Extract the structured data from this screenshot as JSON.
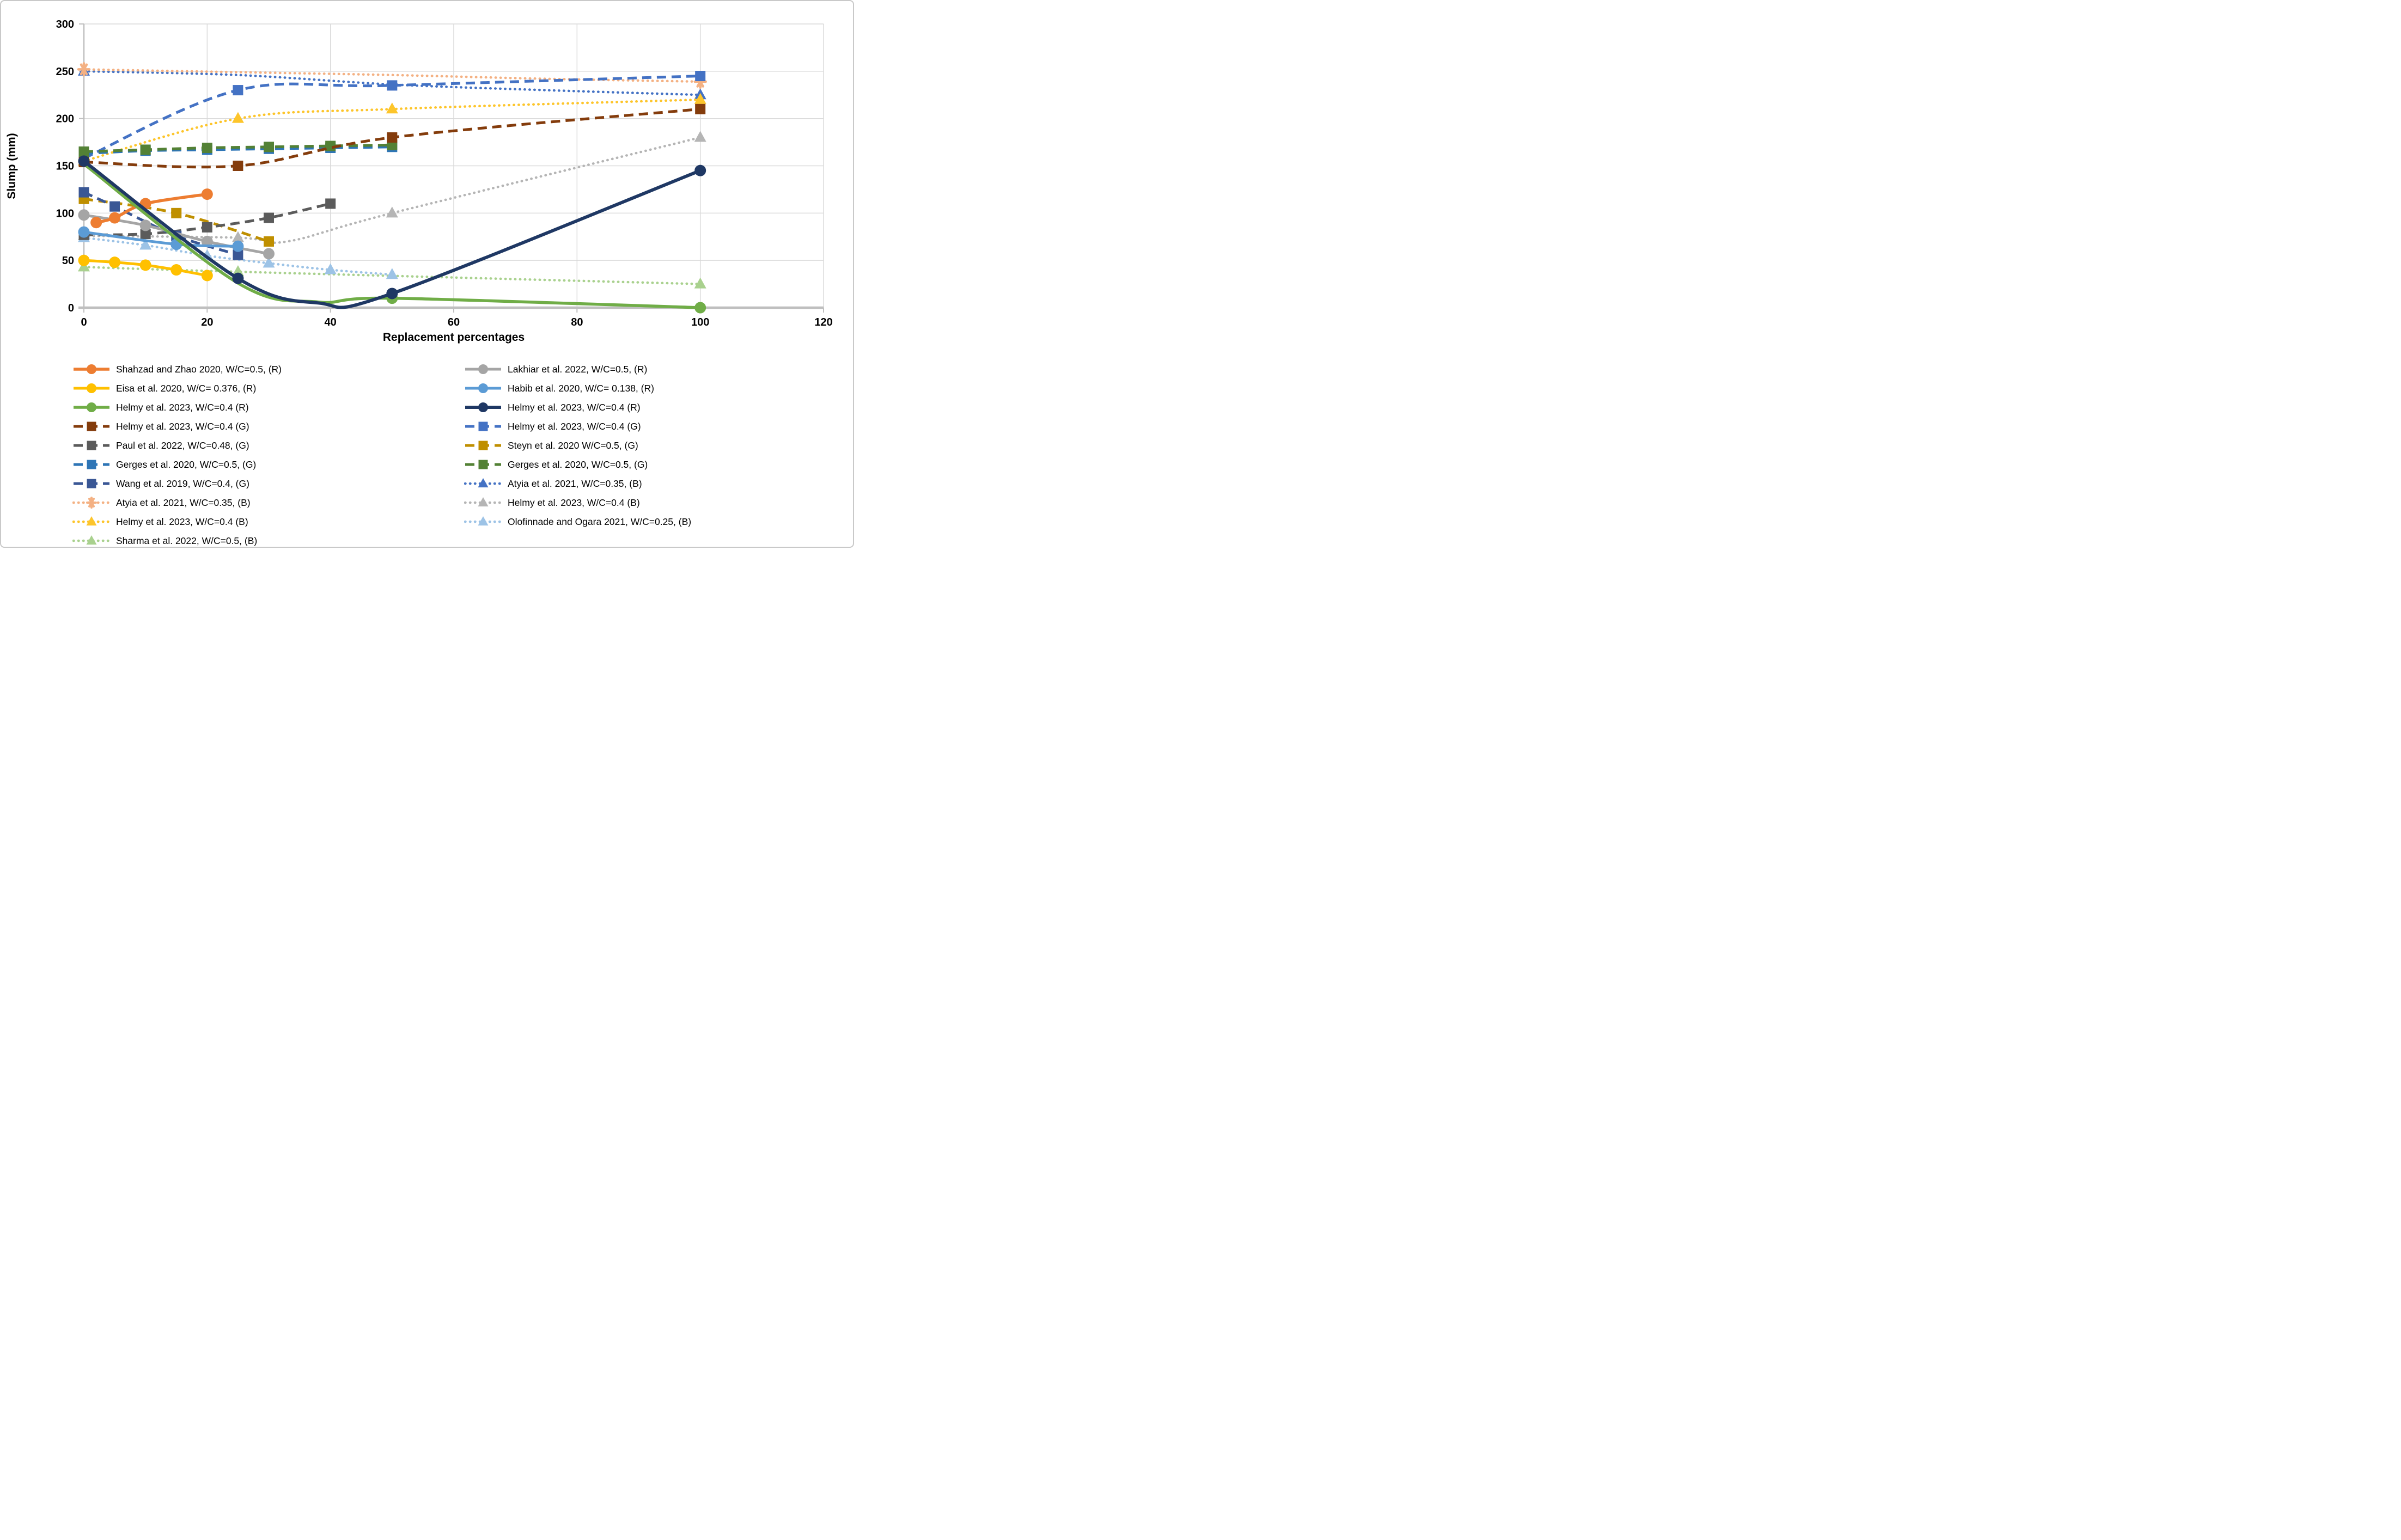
{
  "figure": {
    "background": "#FFFFFF",
    "border_color": "#C9C9C9"
  },
  "axes": {
    "x_title": "Replacement percentages",
    "y_title": "Slump  (mm)",
    "x_ticks": [
      0,
      20,
      40,
      60,
      80,
      100,
      120
    ],
    "y_ticks": [
      0,
      50,
      100,
      150,
      200,
      250,
      300
    ],
    "grid_color": "#D9D9D9",
    "axis_color": "#BFBFBF",
    "tick_label_color": "#000000"
  },
  "chart_data": {
    "type": "line",
    "title": "",
    "xlabel": "Replacement percentages",
    "ylabel": "Slump  (mm)",
    "xlim": [
      0,
      120
    ],
    "ylim": [
      0,
      300
    ],
    "grid": true,
    "legend_position": "bottom-two-columns",
    "series": [
      {
        "key": "atyia_blue",
        "name": "Atyia et al. 2021, W/C=0.35, (B)",
        "color": "#4472C4",
        "line": "dot",
        "marker": "triangle",
        "width": 4.5,
        "points": [
          [
            0,
            250
          ],
          [
            100,
            225
          ]
        ],
        "path": [
          [
            0,
            250
          ],
          [
            25,
            246
          ],
          [
            50,
            236
          ],
          [
            75,
            230
          ],
          [
            100,
            225
          ]
        ],
        "legend_col": 2,
        "legend_row": 7
      },
      {
        "key": "atyia_orange",
        "name": "Atyia et al. 2021, W/C=0.35, (B)",
        "color": "#F4B183",
        "line": "dot",
        "marker": "star",
        "width": 4.5,
        "points": [
          [
            0,
            252
          ],
          [
            100,
            239
          ]
        ],
        "path": [
          [
            0,
            252
          ],
          [
            25,
            249
          ],
          [
            50,
            246
          ],
          [
            75,
            242
          ],
          [
            100,
            239
          ]
        ],
        "legend_col": 1,
        "legend_row": 8
      },
      {
        "key": "helmy_g_blue",
        "name": "Helmy et al. 2023, W/C=0.4 (G)",
        "color": "#4472C4",
        "line": "dash",
        "marker": "square",
        "width": 5,
        "points": [
          [
            0,
            158
          ],
          [
            25,
            230
          ],
          [
            50,
            235
          ],
          [
            100,
            245
          ]
        ],
        "legend_col": 2,
        "legend_row": 4
      },
      {
        "key": "helmy_b_yellow",
        "name": "Helmy et al. 2023, W/C=0.4 (B)",
        "color": "#FDC52B",
        "line": "dot",
        "marker": "triangle",
        "width": 4.5,
        "points": [
          [
            0,
            155
          ],
          [
            25,
            200
          ],
          [
            50,
            210
          ],
          [
            100,
            220
          ]
        ],
        "legend_col": 1,
        "legend_row": 9
      },
      {
        "key": "helmy_b_gray",
        "name": "Helmy et al. 2023, W/C=0.4 (B)",
        "color": "#B5B5B5",
        "line": "dot",
        "marker": "triangle",
        "width": 4.5,
        "points": [
          [
            0,
            76
          ],
          [
            25,
            74
          ],
          [
            50,
            100
          ],
          [
            100,
            180
          ]
        ],
        "path": [
          [
            0,
            76
          ],
          [
            25,
            74
          ],
          [
            33,
            70
          ],
          [
            50,
            100
          ],
          [
            100,
            180
          ]
        ],
        "legend_col": 2,
        "legend_row": 8
      },
      {
        "key": "sharma",
        "name": "Sharma et al. 2022, W/C=0.5, (B)",
        "color": "#A9D18E",
        "line": "dot",
        "marker": "triangle",
        "width": 4.5,
        "points": [
          [
            0,
            43
          ],
          [
            25,
            38
          ],
          [
            100,
            25
          ]
        ],
        "legend_col": 1,
        "legend_row": 10
      },
      {
        "key": "olofinnade",
        "name": "Olofinnade and Ogara 2021, W/C=0.25, (B)",
        "color": "#9DC3E6",
        "line": "dot",
        "marker": "triangle",
        "width": 4.5,
        "points": [
          [
            0,
            74
          ],
          [
            10,
            66
          ],
          [
            20,
            55
          ],
          [
            30,
            47
          ],
          [
            40,
            40
          ],
          [
            50,
            35
          ]
        ],
        "legend_col": 2,
        "legend_row": 9
      },
      {
        "key": "steyn",
        "name": "Steyn et al. 2020 W/C=0.5, (G)",
        "color": "#BF8F00",
        "line": "dash",
        "marker": "square",
        "width": 5,
        "points": [
          [
            0,
            115
          ],
          [
            15,
            100
          ],
          [
            30,
            70
          ]
        ],
        "legend_col": 2,
        "legend_row": 5
      },
      {
        "key": "paul",
        "name": "Paul et al. 2022, W/C=0.48, (G)",
        "color": "#5B5B5B",
        "line": "dash",
        "marker": "square",
        "width": 5,
        "points": [
          [
            0,
            77
          ],
          [
            10,
            78
          ],
          [
            20,
            85
          ],
          [
            30,
            95
          ],
          [
            40,
            110
          ]
        ],
        "legend_col": 1,
        "legend_row": 5
      },
      {
        "key": "wang",
        "name": "Wang et al. 2019, W/C=0.4, (G)",
        "color": "#3A5795",
        "line": "dash",
        "marker": "square",
        "width": 5,
        "points": [
          [
            0,
            122
          ],
          [
            5,
            107
          ],
          [
            15,
            76
          ],
          [
            25,
            56
          ]
        ],
        "legend_col": 1,
        "legend_row": 7
      },
      {
        "key": "gerges_blue",
        "name": "Gerges et al. 2020, W/C=0.5, (G)",
        "color": "#2E75B6",
        "line": "dash",
        "marker": "square",
        "width": 5,
        "points": [
          [
            0,
            163
          ],
          [
            10,
            166
          ],
          [
            20,
            167
          ],
          [
            30,
            168
          ],
          [
            40,
            169
          ],
          [
            50,
            170
          ]
        ],
        "legend_col": 1,
        "legend_row": 6
      },
      {
        "key": "gerges_green",
        "name": "Gerges et al. 2020, W/C=0.5, (G)",
        "color": "#538135",
        "line": "dash",
        "marker": "square",
        "width": 5,
        "points": [
          [
            0,
            165
          ],
          [
            10,
            167
          ],
          [
            20,
            169
          ],
          [
            30,
            170
          ],
          [
            40,
            171
          ],
          [
            50,
            172
          ]
        ],
        "legend_col": 2,
        "legend_row": 6
      },
      {
        "key": "helmy_g_brown",
        "name": "Helmy et al. 2023, W/C=0.4 (G)",
        "color": "#843C0C",
        "line": "dash",
        "marker": "square",
        "width": 5,
        "points": [
          [
            0,
            154
          ],
          [
            25,
            150
          ],
          [
            50,
            180
          ],
          [
            100,
            210
          ]
        ],
        "legend_col": 1,
        "legend_row": 4
      },
      {
        "key": "lakhiar",
        "name": "Lakhiar et al. 2022, W/C=0.5, (R)",
        "color": "#A5A5A5",
        "line": "solid",
        "marker": "circle",
        "width": 5,
        "points": [
          [
            0,
            98
          ],
          [
            10,
            87
          ],
          [
            20,
            70
          ],
          [
            30,
            57
          ]
        ],
        "legend_col": 2,
        "legend_row": 1
      },
      {
        "key": "habib",
        "name": "Habib et al. 2020, W/C= 0.138, (R)",
        "color": "#5B9BD5",
        "line": "solid",
        "marker": "circle",
        "width": 5,
        "points": [
          [
            0,
            80
          ],
          [
            15,
            67
          ],
          [
            25,
            65
          ]
        ],
        "legend_col": 2,
        "legend_row": 2
      },
      {
        "key": "eisa",
        "name": "Eisa et al. 2020, W/C= 0.376, (R)",
        "color": "#FFC000",
        "line": "solid",
        "marker": "circle",
        "width": 5,
        "points": [
          [
            0,
            50
          ],
          [
            5,
            48
          ],
          [
            10,
            45
          ],
          [
            15,
            40
          ],
          [
            20,
            34
          ]
        ],
        "legend_col": 1,
        "legend_row": 2
      },
      {
        "key": "shahzad",
        "name": "Shahzad and Zhao 2020, W/C=0.5, (R)",
        "color": "#ED7D31",
        "line": "solid",
        "marker": "circle",
        "width": 5.5,
        "points": [
          [
            2,
            90
          ],
          [
            5,
            95
          ],
          [
            10,
            110
          ],
          [
            20,
            120
          ]
        ],
        "legend_col": 1,
        "legend_row": 1
      },
      {
        "key": "helmy_r_green",
        "name": "Helmy et al. 2023, W/C=0.4 (R)",
        "color": "#70AD47",
        "line": "solid",
        "marker": "circle",
        "width": 5.5,
        "points": [
          [
            50,
            10
          ],
          [
            100,
            0
          ]
        ],
        "path": [
          [
            0,
            152
          ],
          [
            25,
            26
          ],
          [
            38,
            6
          ],
          [
            50,
            10
          ],
          [
            100,
            0
          ]
        ],
        "legend_col": 1,
        "legend_row": 3
      },
      {
        "key": "helmy_r_navy",
        "name": "Helmy et al. 2023, W/C=0.4 (R)",
        "color": "#1F3864",
        "line": "solid",
        "marker": "circle",
        "width": 6,
        "points": [
          [
            0,
            155
          ],
          [
            25,
            31
          ],
          [
            50,
            15
          ],
          [
            100,
            145
          ]
        ],
        "path": [
          [
            0,
            155
          ],
          [
            25,
            31
          ],
          [
            38,
            5
          ],
          [
            50,
            15
          ],
          [
            100,
            145
          ]
        ],
        "legend_col": 2,
        "legend_row": 3
      }
    ]
  }
}
